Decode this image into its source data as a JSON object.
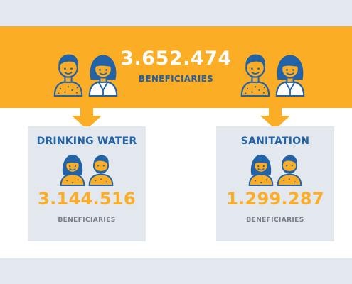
{
  "colors": {
    "accent": "#fbad26",
    "brand_blue": "#2262a6",
    "panel_gray": "#e3e7ee",
    "label_gray": "#7a7e85"
  },
  "total": {
    "value": "3.652.474",
    "label": "BENEFICIARIES"
  },
  "cards": [
    {
      "title": "DRINKING WATER",
      "value": "3.144.516",
      "label": "BENEFICIARIES"
    },
    {
      "title": "SANITATION",
      "value": "1.299.287",
      "label": "BENEFICIARIES"
    }
  ],
  "icons": [
    "man-icon",
    "woman-icon",
    "arrow-down-icon"
  ]
}
